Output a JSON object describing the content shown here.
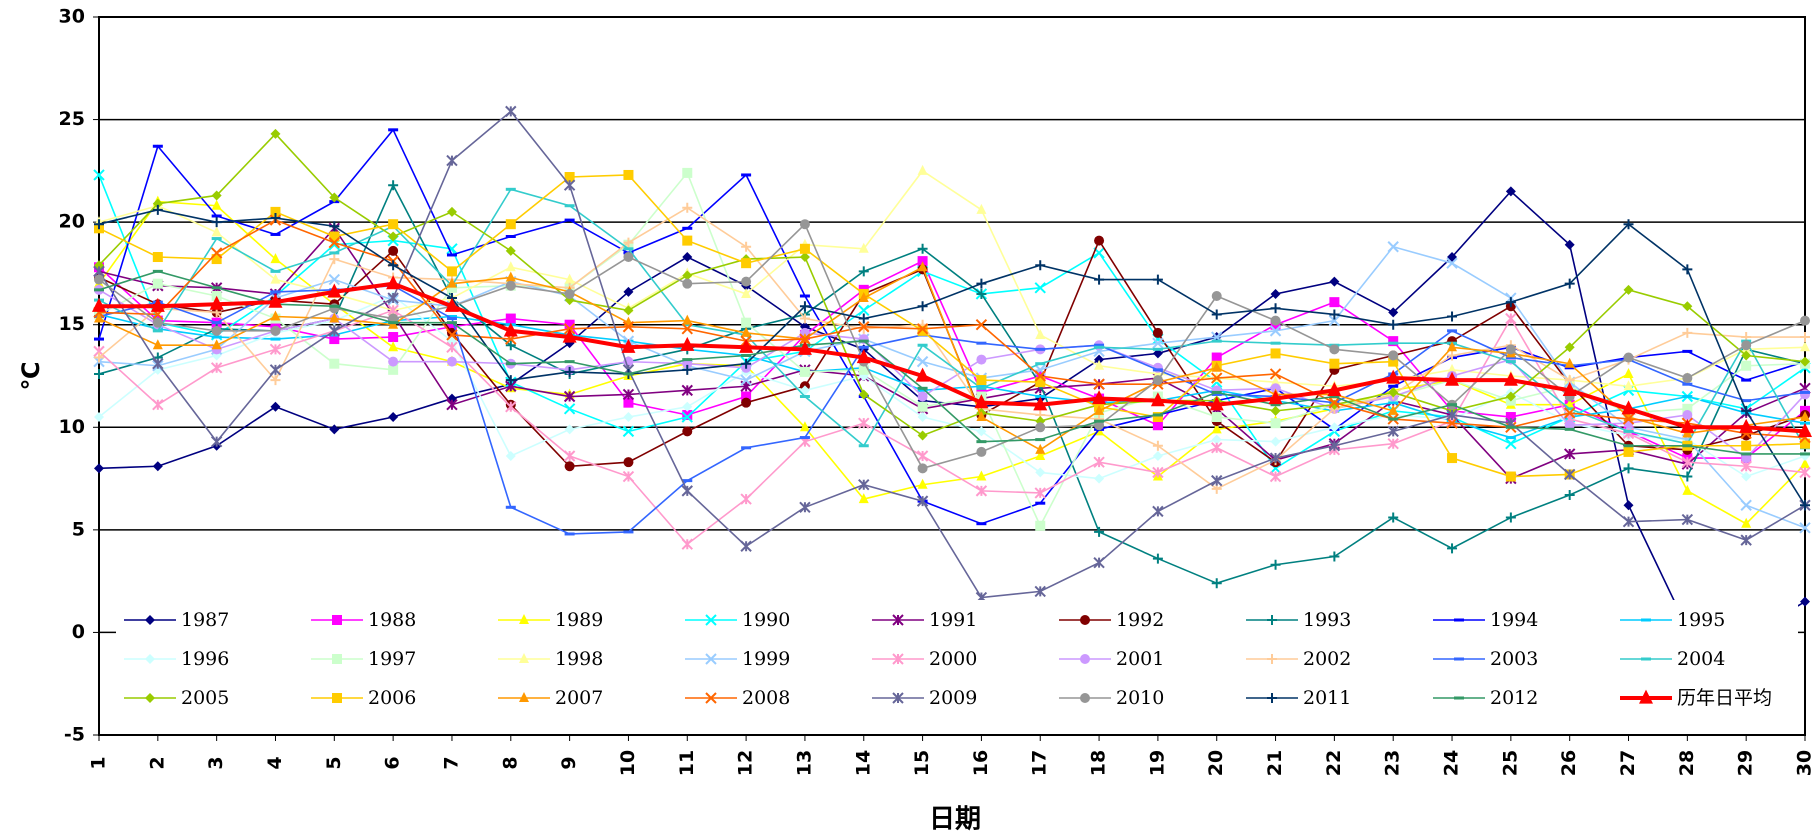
{
  "chart_data": {
    "type": "line",
    "x_label": "日期",
    "y_label": "℃",
    "categories": [
      1,
      2,
      3,
      4,
      5,
      6,
      7,
      8,
      9,
      10,
      11,
      12,
      13,
      14,
      15,
      16,
      17,
      18,
      19,
      20,
      21,
      22,
      23,
      24,
      25,
      26,
      27,
      28,
      29,
      30
    ],
    "ylim": [
      -5,
      30
    ],
    "yticks": [
      -5,
      0,
      5,
      10,
      15,
      20,
      25,
      30
    ],
    "grid": true,
    "legend": "bottom",
    "series": [
      {
        "name": "1987",
        "color": "#000080",
        "marker": "diamond",
        "values": [
          8,
          8.1,
          9.1,
          11,
          9.9,
          10.5,
          11.4,
          12.1,
          14.1,
          16.6,
          18.3,
          16.9,
          14.9,
          13.8,
          11.3,
          11,
          11.4,
          13.3,
          13.6,
          14.4,
          16.5,
          17.1,
          15.6,
          18.3,
          21.5,
          18.9,
          6.2,
          0.2,
          -0.2,
          1.5
        ]
      },
      {
        "name": "1988",
        "color": "#ff00ff",
        "marker": "square",
        "values": [
          17.8,
          15.2,
          15.1,
          14.9,
          14.3,
          14.4,
          14.9,
          15.3,
          15,
          11.2,
          10.6,
          11.5,
          14.5,
          16.7,
          18.1,
          11.7,
          12.5,
          11.4,
          10.1,
          13.4,
          15,
          16.1,
          14.2,
          10.8,
          10.5,
          11.1,
          9.8,
          8.5,
          8.5,
          10.8
        ]
      },
      {
        "name": "1989",
        "color": "#ffff00",
        "marker": "triangle",
        "values": [
          17,
          21,
          20.8,
          18.2,
          16,
          13.9,
          13.2,
          11.9,
          11.6,
          12.5,
          13.1,
          13,
          10,
          6.5,
          7.2,
          7.6,
          8.6,
          9.8,
          7.6,
          9.9,
          10.3,
          10.9,
          11.8,
          12.3,
          11.1,
          11.1,
          12.6,
          6.9,
          5.3,
          8.2
        ]
      },
      {
        "name": "1990",
        "color": "#00ffff",
        "marker": "x",
        "values": [
          22.3,
          15.1,
          14.5,
          16.4,
          18.9,
          19.1,
          18.7,
          12.2,
          10.9,
          9.8,
          10.5,
          13.2,
          13.7,
          15.7,
          17.6,
          16.5,
          16.8,
          18.5,
          14.3,
          12.2,
          8,
          9.8,
          10.8,
          10.5,
          9.2,
          10.5,
          11.8,
          11.5,
          10.9,
          12.9
        ]
      },
      {
        "name": "1991",
        "color": "#800080",
        "marker": "star",
        "values": [
          17.6,
          16.9,
          16.8,
          16.5,
          19.7,
          15.5,
          11.1,
          12,
          11.5,
          11.6,
          11.8,
          12,
          12.8,
          12.5,
          10.9,
          11.4,
          11.9,
          12.1,
          12.4,
          10.9,
          8.4,
          9.2,
          11.3,
          10.6,
          7.5,
          8.7,
          8.9,
          8.2,
          10.7,
          11.9
        ]
      },
      {
        "name": "1992",
        "color": "#800000",
        "marker": "circle",
        "values": [
          17.3,
          16,
          15.6,
          16.2,
          16,
          18.6,
          14.6,
          11.1,
          8.1,
          8.3,
          9.8,
          11.2,
          12,
          16.5,
          17.7,
          10.6,
          12.2,
          19.1,
          14.6,
          10.3,
          8.3,
          12.8,
          13.5,
          14.2,
          15.9,
          12.1,
          9.1,
          8.9,
          9.6,
          10.6
        ]
      },
      {
        "name": "1993",
        "color": "#008080",
        "marker": "plus",
        "values": [
          12.6,
          13.4,
          14.8,
          14.7,
          15.3,
          21.8,
          16.3,
          14,
          12.6,
          13.2,
          13.8,
          14.8,
          15.5,
          17.6,
          18.7,
          16.5,
          12.1,
          4.9,
          3.6,
          2.4,
          3.3,
          3.7,
          5.6,
          4.1,
          5.6,
          6.7,
          8,
          7.6,
          13.8,
          13.1
        ]
      },
      {
        "name": "1994",
        "color": "#0000ff",
        "marker": "dash",
        "values": [
          14.3,
          23.7,
          20.3,
          19.4,
          21,
          24.5,
          18.4,
          19.3,
          20.1,
          18.5,
          19.7,
          22.3,
          16.4,
          11.5,
          6.4,
          5.3,
          6.3,
          9.9,
          10.6,
          11.3,
          11.9,
          9.9,
          12,
          13.4,
          13.9,
          12.9,
          13.4,
          13.7,
          12.3,
          13.2
        ]
      },
      {
        "name": "1995",
        "color": "#00ccff",
        "marker": "dash",
        "values": [
          15.5,
          14.8,
          14.4,
          14.3,
          14.5,
          15.2,
          15.4,
          15,
          14.5,
          14.2,
          13.8,
          13.5,
          12.7,
          12.9,
          11.8,
          12,
          11.5,
          11.2,
          11.3,
          11.8,
          11.3,
          10.8,
          11.2,
          10.3,
          9.5,
          10.5,
          10.9,
          11.5,
          10.7,
          10.2
        ]
      },
      {
        "name": "1996",
        "color": "#ccffff",
        "marker": "diamond",
        "values": [
          10.5,
          12.8,
          13.5,
          14.6,
          15.2,
          16.4,
          14.2,
          8.6,
          9.9,
          10.5,
          11,
          12.7,
          11.8,
          12.5,
          10.5,
          9.8,
          7.8,
          7.5,
          8.6,
          9.4,
          9.3,
          10,
          10.6,
          10.4,
          11.7,
          10.2,
          9.6,
          9.4,
          7.6,
          8.6
        ]
      },
      {
        "name": "1997",
        "color": "#ccffcc",
        "marker": "square",
        "values": [
          15.5,
          17,
          16.4,
          15.3,
          13.1,
          12.8,
          16.8,
          16.9,
          16.8,
          18.9,
          22.4,
          15.1,
          12.7,
          12.8,
          11,
          11.5,
          5.2,
          10.7,
          11.5,
          10.5,
          10.2,
          11.1,
          11.5,
          12.3,
          11.3,
          12,
          10.7,
          10.9,
          13,
          13.1
        ]
      },
      {
        "name": "1998",
        "color": "#ffff99",
        "marker": "triangle",
        "values": [
          20,
          20.8,
          19.5,
          17.2,
          16.5,
          15.7,
          16.3,
          17.8,
          17.2,
          15.8,
          17.5,
          16.5,
          18.9,
          18.7,
          22.5,
          20.6,
          14.5,
          13,
          12.6,
          12.4,
          12.2,
          12,
          12.3,
          12.8,
          12.5,
          12.3,
          12,
          12.4,
          13.8,
          13.9
        ]
      },
      {
        "name": "1999",
        "color": "#99ccff",
        "marker": "x",
        "values": [
          13.2,
          13,
          13.8,
          16.3,
          17.2,
          16.2,
          15.9,
          17.1,
          16.4,
          14.2,
          13,
          12.3,
          13.7,
          14.3,
          13.2,
          12.4,
          12.8,
          13.7,
          14.1,
          14.4,
          14.7,
          15.2,
          18.8,
          18,
          16.3,
          12.2,
          10,
          9.4,
          6.2,
          5.1
        ]
      },
      {
        "name": "2000",
        "color": "#ff99cc",
        "marker": "star",
        "values": [
          13.7,
          11.1,
          12.9,
          13.8,
          14.7,
          15.7,
          13.9,
          11,
          8.6,
          7.6,
          4.3,
          6.5,
          9.3,
          10.2,
          8.6,
          6.9,
          6.8,
          8.3,
          7.8,
          9,
          7.6,
          8.9,
          9.2,
          10.3,
          15.3,
          10.4,
          9.7,
          8.3,
          8.1,
          7.8
        ]
      },
      {
        "name": "2001",
        "color": "#cc99ff",
        "marker": "circle",
        "values": [
          16.7,
          15,
          13.8,
          14.7,
          15.3,
          13.2,
          13.2,
          13.1,
          12.8,
          13.2,
          13.1,
          12.9,
          14.6,
          14.3,
          11.5,
          13.3,
          13.8,
          14,
          12.9,
          11.8,
          11.9,
          10.9,
          11.5,
          12.5,
          13.3,
          10.1,
          10.2,
          10.6,
          8.5,
          11.6
        ]
      },
      {
        "name": "2002",
        "color": "#ffcc99",
        "marker": "plus",
        "values": [
          13.4,
          15.8,
          15.6,
          12.3,
          18.2,
          17.3,
          17.2,
          17,
          16.8,
          19,
          20.7,
          18.8,
          15.3,
          14.8,
          15,
          10.9,
          10.6,
          10.4,
          9.1,
          7,
          8.4,
          10.9,
          11.6,
          13.5,
          14,
          12.3,
          13.3,
          14.6,
          14.4,
          14.4
        ]
      },
      {
        "name": "2003",
        "color": "#3366ff",
        "marker": "dash",
        "values": [
          15.4,
          16.1,
          15.1,
          16.6,
          16.7,
          16.9,
          15.3,
          6.1,
          4.8,
          4.9,
          7.4,
          9,
          9.5,
          13.9,
          14.5,
          14.1,
          13.8,
          14,
          12.8,
          11.6,
          11.5,
          11.2,
          12.6,
          14.7,
          13.4,
          13,
          13.3,
          12.1,
          11.3,
          11.7
        ]
      },
      {
        "name": "2004",
        "color": "#33cccc",
        "marker": "dash",
        "values": [
          16.2,
          14.7,
          19.2,
          17.6,
          18.5,
          19.8,
          16.9,
          21.6,
          20.8,
          18.7,
          15,
          14.5,
          11.5,
          9.1,
          14,
          11.9,
          13.1,
          13.9,
          13.8,
          14.2,
          14.1,
          14,
          14.1,
          14.1,
          13.2,
          10.9,
          9.8,
          9.2,
          14.2,
          9
        ]
      },
      {
        "name": "2005",
        "color": "#99cc00",
        "marker": "diamond",
        "values": [
          17.9,
          20.9,
          21.3,
          24.3,
          21.2,
          19.3,
          20.5,
          18.6,
          16.2,
          15.7,
          17.4,
          18.2,
          18.3,
          11.6,
          9.6,
          10.7,
          10.3,
          11.1,
          11.3,
          11.3,
          10.8,
          11.1,
          11.7,
          10.8,
          11.5,
          13.9,
          16.7,
          15.9,
          13.5,
          13.2
        ]
      },
      {
        "name": "2006",
        "color": "#ffcc00",
        "marker": "square",
        "values": [
          19.7,
          18.3,
          18.2,
          20.5,
          19.3,
          19.9,
          17.6,
          19.9,
          22.2,
          22.3,
          19.1,
          18,
          18.7,
          16.5,
          14.7,
          12.3,
          12.2,
          11,
          10.5,
          13,
          13.6,
          13.1,
          13.2,
          8.5,
          7.6,
          7.7,
          8.8,
          9.1,
          9.1,
          9.2
        ]
      },
      {
        "name": "2007",
        "color": "#ff9900",
        "marker": "triangle",
        "values": [
          15.3,
          14,
          14,
          15.4,
          15.3,
          15,
          17,
          17.3,
          16.6,
          15.1,
          15.2,
          14.6,
          14.3,
          16.3,
          17.8,
          10.5,
          8.9,
          10.8,
          12.2,
          12.9,
          11.6,
          11.6,
          10.8,
          13.9,
          13.6,
          13.1,
          10.5,
          9.7,
          10.1,
          10.5
        ]
      },
      {
        "name": "2008",
        "color": "#ff6600",
        "marker": "x",
        "values": [
          15.6,
          15.5,
          18.5,
          20.1,
          19,
          18.1,
          14.5,
          14.3,
          14.8,
          14.9,
          14.8,
          14.2,
          14.3,
          14.9,
          14.8,
          15,
          12.5,
          12.1,
          12.1,
          12.4,
          12.6,
          11.2,
          10.4,
          10.2,
          10,
          10.7,
          10.4,
          10.2,
          9.7,
          9.5
        ]
      },
      {
        "name": "2009",
        "color": "#666699",
        "marker": "star",
        "values": [
          17.6,
          13.1,
          9.3,
          12.8,
          14.7,
          16.3,
          23,
          25.4,
          21.8,
          12.8,
          6.9,
          4.2,
          6.1,
          7.2,
          6.4,
          1.7,
          2,
          3.4,
          5.9,
          7.4,
          8.5,
          9.1,
          9.8,
          10.6,
          10.2,
          7.7,
          5.4,
          5.5,
          4.5,
          6.2
        ]
      },
      {
        "name": "2010",
        "color": "#969696",
        "marker": "circle",
        "values": [
          17.2,
          15.1,
          14.7,
          14.7,
          15.8,
          15.3,
          15.9,
          16.9,
          16.5,
          18.3,
          17,
          17.1,
          19.9,
          13.2,
          8,
          8.8,
          10,
          10.1,
          12.3,
          16.4,
          15.2,
          13.8,
          13.5,
          11.1,
          13.8,
          11.5,
          13.4,
          12.4,
          14,
          15.2
        ]
      },
      {
        "name": "2011",
        "color": "#003366",
        "marker": "plus",
        "values": [
          19.9,
          20.6,
          20,
          20.2,
          19.8,
          17.9,
          16.3,
          12.3,
          12.7,
          12.6,
          12.8,
          13.1,
          15.9,
          15.3,
          15.9,
          17,
          17.9,
          17.2,
          17.2,
          15.5,
          15.8,
          15.5,
          15,
          15.4,
          16.1,
          17,
          19.9,
          17.7,
          10.8,
          6.2
        ]
      },
      {
        "name": "2012",
        "color": "#339966",
        "marker": "dash",
        "values": [
          16.7,
          17.6,
          16.8,
          16,
          15.9,
          15.1,
          15.1,
          13.1,
          13.2,
          12.6,
          13.3,
          13.5,
          14,
          14.2,
          11.9,
          9.3,
          9.4,
          10.3,
          10.6,
          11.7,
          11.1,
          11.5,
          10.4,
          11.1,
          10,
          9.9,
          9.1,
          9.1,
          8.7,
          8.7
        ]
      },
      {
        "name": "历年日平均",
        "color": "#ff0000",
        "marker": "triangle",
        "line_width": 4,
        "values": [
          15.9,
          15.9,
          16,
          16.1,
          16.6,
          17,
          15.9,
          14.7,
          14.4,
          13.9,
          14,
          13.9,
          13.8,
          13.4,
          12.5,
          11.2,
          11.1,
          11.4,
          11.3,
          11.1,
          11.4,
          11.8,
          12.4,
          12.3,
          12.3,
          11.8,
          10.9,
          10,
          10,
          9.8
        ]
      }
    ]
  }
}
